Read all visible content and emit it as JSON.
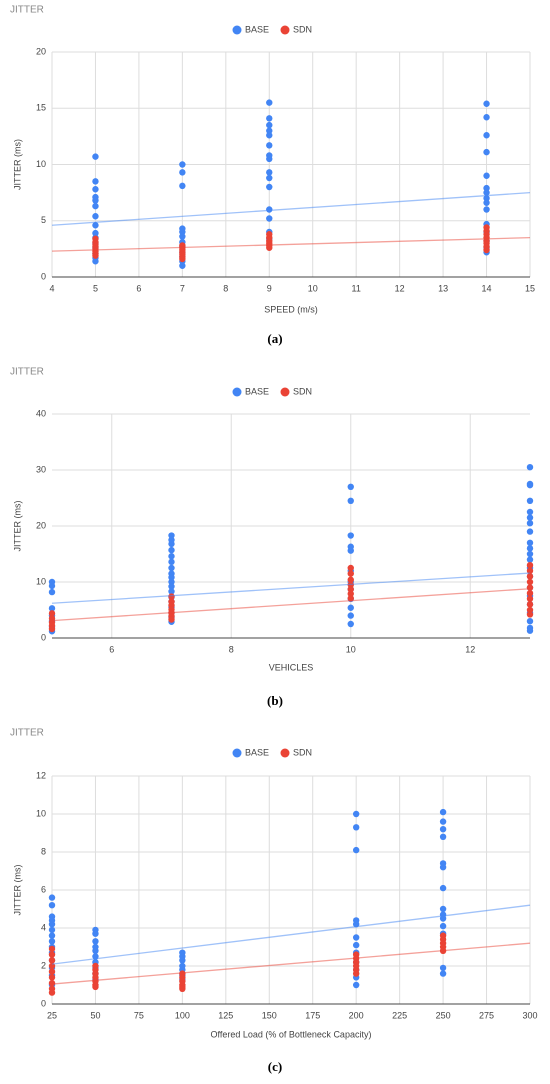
{
  "chart_data": [
    {
      "type": "scatter",
      "title": "JITTER",
      "xlabel": "SPEED  (m/s)",
      "ylabel": "JITTER (ms)",
      "caption": "(a)",
      "xlim": [
        4,
        15
      ],
      "xticks": [
        4,
        5,
        6,
        7,
        8,
        9,
        10,
        11,
        12,
        13,
        14,
        15
      ],
      "ylim": [
        0,
        20
      ],
      "yticks": [
        0,
        5,
        10,
        15,
        20
      ],
      "grid": true,
      "legend": "top",
      "series": [
        {
          "name": "BASE",
          "color": "#4285f4",
          "x": [
            5,
            5,
            5,
            5,
            5,
            5,
            5,
            5,
            5,
            5,
            5,
            5,
            5,
            5,
            5,
            7,
            7,
            7,
            7,
            7,
            7,
            7,
            7,
            7,
            7,
            7,
            7,
            9,
            9,
            9,
            9,
            9,
            9,
            9,
            9,
            9,
            9,
            9,
            9,
            9,
            9,
            9,
            14,
            14,
            14,
            14,
            14,
            14,
            14,
            14,
            14,
            14,
            14,
            14,
            14,
            14,
            14
          ],
          "values": [
            10.7,
            8.5,
            7.8,
            7.1,
            6.8,
            6.3,
            5.4,
            4.6,
            3.9,
            3.5,
            3,
            2.6,
            2.1,
            1.7,
            1.4,
            10,
            9.3,
            8.1,
            4.3,
            4,
            3.6,
            3.1,
            2.7,
            2.2,
            1.8,
            1.4,
            1,
            15.5,
            14.1,
            13.5,
            13,
            12.6,
            11.7,
            10.8,
            10.5,
            9.3,
            8.8,
            8,
            6,
            5.2,
            4,
            3.4,
            15.4,
            14.2,
            12.6,
            11.1,
            9,
            7.9,
            7.5,
            7,
            6.6,
            6,
            4.7,
            4,
            3.2,
            2.6,
            2.2
          ],
          "trendline": {
            "x": [
              4,
              15
            ],
            "values": [
              4.6,
              7.5
            ]
          }
        },
        {
          "name": "SDN",
          "color": "#ea4335",
          "x": [
            5,
            5,
            5,
            5,
            5,
            5,
            5,
            5,
            7,
            7,
            7,
            7,
            7,
            7,
            7,
            9,
            9,
            9,
            9,
            9,
            9,
            14,
            14,
            14,
            14,
            14,
            14,
            14,
            14
          ],
          "values": [
            3.4,
            3.1,
            2.9,
            2.7,
            2.5,
            2.3,
            2.1,
            1.9,
            2.8,
            2.6,
            2.4,
            2.2,
            2,
            1.8,
            1.6,
            3.8,
            3.5,
            3.2,
            3,
            2.8,
            2.6,
            4.4,
            4.1,
            3.8,
            3.5,
            3.2,
            3,
            2.7,
            2.4
          ],
          "trendline": {
            "x": [
              4,
              15
            ],
            "values": [
              2.3,
              3.5
            ]
          }
        }
      ]
    },
    {
      "type": "scatter",
      "title": "JITTER",
      "xlabel": "VEHICLES",
      "ylabel": "JITTER (ms)",
      "caption": "(b)",
      "xlim": [
        5,
        13
      ],
      "xticks": [
        6,
        8,
        10,
        12
      ],
      "ylim": [
        0,
        40
      ],
      "yticks": [
        0,
        10,
        20,
        30,
        40
      ],
      "grid": true,
      "legend": "top",
      "series": [
        {
          "name": "BASE",
          "color": "#4285f4",
          "x": [
            5,
            5,
            5,
            5,
            5,
            5,
            5,
            5,
            7,
            7,
            7,
            7,
            7,
            7,
            7,
            7,
            7,
            7,
            7,
            7,
            7,
            7,
            7,
            7,
            7,
            7,
            10,
            10,
            10,
            10,
            10,
            10,
            10,
            10,
            10,
            10,
            10,
            10,
            13,
            13,
            13,
            13,
            13,
            13,
            13,
            13,
            13,
            13,
            13,
            13,
            13,
            13,
            13,
            13,
            13,
            13,
            13,
            13,
            13
          ],
          "values": [
            10,
            9.3,
            8.2,
            5.3,
            4,
            3,
            2,
            1.2,
            18.3,
            17.5,
            16.8,
            15.7,
            14.6,
            13.6,
            12.5,
            11.5,
            10.8,
            10,
            9.2,
            8.3,
            7.3,
            6.5,
            5.5,
            4.5,
            3.7,
            2.9,
            27,
            24.5,
            18.3,
            16.3,
            15.6,
            12,
            10,
            8.7,
            7,
            5.4,
            4,
            2.5,
            30.5,
            27.5,
            27.3,
            24.5,
            22.5,
            21.5,
            20.5,
            19,
            17,
            16,
            15,
            14,
            12.5,
            11,
            9,
            7.5,
            6,
            4.5,
            3,
            1.8,
            1.3
          ],
          "trendline": {
            "x": [
              5,
              13
            ],
            "values": [
              6.2,
              11.6
            ]
          }
        },
        {
          "name": "SDN",
          "color": "#ea4335",
          "x": [
            5,
            5,
            5,
            5,
            5,
            7,
            7,
            7,
            7,
            7,
            7,
            7,
            10,
            10,
            10,
            10,
            10,
            10,
            10,
            13,
            13,
            13,
            13,
            13,
            13,
            13,
            13,
            13,
            13
          ],
          "values": [
            4.4,
            3.5,
            2.8,
            2.2,
            1.6,
            7.4,
            6.5,
            5.8,
            5.1,
            4.5,
            3.9,
            3.3,
            12.5,
            11.5,
            10.4,
            9.5,
            8.7,
            7.9,
            7.1,
            13,
            12,
            11,
            10,
            9,
            8,
            7,
            6,
            5,
            4.2
          ],
          "trendline": {
            "x": [
              5,
              13
            ],
            "values": [
              3.1,
              8.8
            ]
          }
        }
      ]
    },
    {
      "type": "scatter",
      "title": "JITTER",
      "xlabel": "Offered Load (% of Bottleneck Capacity)",
      "ylabel": "JITTER (ms)",
      "caption": "(c)",
      "xlim": [
        25,
        300
      ],
      "xticks": [
        25,
        50,
        75,
        100,
        125,
        150,
        175,
        200,
        225,
        250,
        275,
        300
      ],
      "ylim": [
        0,
        12
      ],
      "yticks": [
        0,
        2,
        4,
        6,
        8,
        10,
        12
      ],
      "grid": true,
      "legend": "top",
      "series": [
        {
          "name": "BASE",
          "color": "#4285f4",
          "x": [
            25,
            25,
            25,
            25,
            25,
            25,
            25,
            25,
            25,
            25,
            25,
            25,
            25,
            25,
            50,
            50,
            50,
            50,
            50,
            50,
            50,
            50,
            50,
            50,
            100,
            100,
            100,
            100,
            100,
            100,
            100,
            200,
            200,
            200,
            200,
            200,
            200,
            200,
            200,
            200,
            200,
            200,
            200,
            250,
            250,
            250,
            250,
            250,
            250,
            250,
            250,
            250,
            250,
            250,
            250,
            250,
            250
          ],
          "values": [
            5.6,
            5.2,
            4.6,
            4.4,
            4.2,
            3.9,
            3.6,
            3.3,
            3,
            2.7,
            2.3,
            1.9,
            1.5,
            1,
            3.9,
            3.7,
            3.3,
            3,
            2.8,
            2.5,
            2.2,
            1.9,
            1.6,
            1.3,
            2.7,
            2.5,
            2.3,
            2,
            1.8,
            1.5,
            1.3,
            10,
            9.3,
            8.1,
            4.4,
            4.2,
            3.5,
            3.1,
            2.7,
            2.2,
            1.8,
            1.4,
            1,
            10.1,
            9.6,
            9.2,
            8.8,
            7.4,
            7.2,
            6.1,
            5,
            4.7,
            4.5,
            4.1,
            3.7,
            1.9,
            1.6
          ],
          "trendline": {
            "x": [
              25,
              300
            ],
            "values": [
              2.1,
              5.2
            ]
          }
        },
        {
          "name": "SDN",
          "color": "#ea4335",
          "x": [
            25,
            25,
            25,
            25,
            25,
            25,
            25,
            25,
            25,
            50,
            50,
            50,
            50,
            50,
            50,
            50,
            100,
            100,
            100,
            100,
            100,
            100,
            200,
            200,
            200,
            200,
            200,
            200,
            250,
            250,
            250,
            250,
            250
          ],
          "values": [
            2.9,
            2.6,
            2.3,
            2,
            1.7,
            1.4,
            1.1,
            0.8,
            0.6,
            2,
            1.8,
            1.6,
            1.4,
            1.2,
            1,
            0.9,
            1.6,
            1.4,
            1.2,
            1,
            0.9,
            0.8,
            2.6,
            2.4,
            2.2,
            2,
            1.8,
            1.6,
            3.6,
            3.4,
            3.2,
            3,
            2.8
          ],
          "trendline": {
            "x": [
              25,
              300
            ],
            "values": [
              1.05,
              3.2
            ]
          }
        }
      ]
    }
  ]
}
